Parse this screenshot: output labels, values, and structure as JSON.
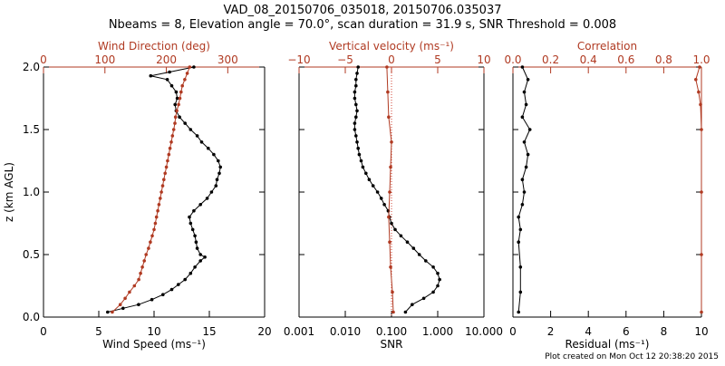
{
  "title_line1": "VAD_08_20150706_035018, 20150706.035037",
  "title_line2": "Nbeams = 8, Elevation angle = 70.0°, scan duration = 31.9 s, SNR Threshold = 0.008",
  "footer": "Plot created on Mon Oct 12 20:38:20 2015",
  "colors": {
    "primary": "#000000",
    "secondary": "#b03a22",
    "dotted_ref": "#d04030"
  },
  "chart_data": [
    {
      "type": "line",
      "ylabel": "z (km AGL)",
      "ylim": [
        0,
        2
      ],
      "yticks": [
        "0.0",
        "0.5",
        "1.0",
        "1.5",
        "2.0"
      ],
      "bottom_axis": {
        "label": "Wind Speed (ms⁻¹)",
        "range": [
          0,
          20
        ],
        "ticks": [
          "0",
          "5",
          "10",
          "15",
          "20"
        ],
        "color": "#000000"
      },
      "top_axis": {
        "label": "Wind Direction (deg)",
        "range": [
          0,
          360
        ],
        "ticks": [
          "0",
          "100",
          "200",
          "300"
        ],
        "color": "#b03a22"
      },
      "series": [
        {
          "axis": "bottom",
          "color": "#000000",
          "z": [
            0.04,
            0.07,
            0.1,
            0.14,
            0.18,
            0.22,
            0.26,
            0.3,
            0.35,
            0.4,
            0.45,
            0.48,
            0.5,
            0.55,
            0.6,
            0.65,
            0.7,
            0.75,
            0.8,
            0.85,
            0.9,
            0.95,
            1.0,
            1.05,
            1.1,
            1.15,
            1.2,
            1.25,
            1.3,
            1.35,
            1.4,
            1.45,
            1.5,
            1.55,
            1.6,
            1.65,
            1.7,
            1.75,
            1.8,
            1.85,
            1.9,
            1.93,
            1.96,
            2.0
          ],
          "values": [
            5.8,
            7.2,
            8.6,
            9.8,
            10.8,
            11.6,
            12.2,
            12.8,
            13.3,
            13.7,
            14.2,
            14.6,
            14.2,
            13.9,
            13.8,
            13.7,
            13.5,
            13.3,
            13.2,
            13.6,
            14.2,
            14.8,
            15.2,
            15.6,
            15.7,
            15.9,
            16.0,
            15.8,
            15.4,
            14.9,
            14.3,
            13.9,
            13.3,
            12.8,
            12.3,
            12.0,
            11.9,
            12.1,
            12.0,
            11.6,
            11.2,
            9.7,
            11.4,
            13.6
          ]
        },
        {
          "axis": "top",
          "color": "#b03a22",
          "z": [
            0.04,
            0.1,
            0.15,
            0.2,
            0.25,
            0.3,
            0.35,
            0.4,
            0.45,
            0.5,
            0.55,
            0.6,
            0.65,
            0.7,
            0.75,
            0.8,
            0.85,
            0.9,
            0.95,
            1.0,
            1.05,
            1.1,
            1.15,
            1.2,
            1.25,
            1.3,
            1.35,
            1.4,
            1.45,
            1.5,
            1.55,
            1.6,
            1.65,
            1.7,
            1.75,
            1.8,
            1.85,
            1.9,
            1.95,
            2.0
          ],
          "values": [
            112,
            125,
            133,
            140,
            148,
            155,
            158,
            161,
            164,
            167,
            171,
            174,
            177,
            180,
            182,
            184,
            186,
            188,
            190,
            192,
            194,
            196,
            198,
            200,
            202,
            204,
            206,
            208,
            210,
            212,
            214,
            215,
            217,
            220,
            222,
            224,
            226,
            230,
            234,
            238
          ]
        }
      ]
    },
    {
      "type": "line",
      "ylim": [
        0,
        2
      ],
      "bottom_axis": {
        "label": "SNR",
        "scale": "log",
        "range": [
          0.001,
          10
        ],
        "ticks": [
          "0.001",
          "0.010",
          "0.100",
          "1.000",
          "10.000"
        ],
        "color": "#000000"
      },
      "top_axis": {
        "label": "Vertical velocity (ms⁻¹)",
        "range": [
          -10,
          10
        ],
        "ticks": [
          "−10",
          "−5",
          "0",
          "5",
          "10"
        ],
        "color": "#b03a22"
      },
      "series": [
        {
          "axis": "bottom",
          "color": "#000000",
          "z": [
            0.04,
            0.1,
            0.15,
            0.2,
            0.25,
            0.3,
            0.35,
            0.4,
            0.45,
            0.5,
            0.55,
            0.6,
            0.65,
            0.7,
            0.75,
            0.8,
            0.85,
            0.9,
            0.95,
            1.0,
            1.05,
            1.1,
            1.15,
            1.2,
            1.25,
            1.3,
            1.35,
            1.4,
            1.45,
            1.5,
            1.55,
            1.6,
            1.65,
            1.7,
            1.75,
            1.8,
            1.85,
            1.9,
            1.95,
            2.0
          ],
          "values": [
            0.2,
            0.28,
            0.5,
            0.8,
            1.0,
            1.1,
            1.0,
            0.8,
            0.55,
            0.4,
            0.3,
            0.22,
            0.16,
            0.12,
            0.1,
            0.09,
            0.085,
            0.07,
            0.06,
            0.05,
            0.04,
            0.033,
            0.028,
            0.024,
            0.022,
            0.02,
            0.019,
            0.018,
            0.017,
            0.016,
            0.016,
            0.017,
            0.018,
            0.017,
            0.016,
            0.016,
            0.017,
            0.017,
            0.018,
            0.019
          ]
        },
        {
          "axis": "top",
          "color": "#b03a22",
          "z": [
            0.04,
            0.2,
            0.4,
            0.6,
            0.8,
            1.0,
            1.2,
            1.4,
            1.6,
            1.8,
            2.0
          ],
          "values": [
            0.2,
            0.1,
            -0.1,
            -0.2,
            -0.3,
            -0.2,
            -0.1,
            0.0,
            -0.3,
            -0.4,
            -0.5
          ]
        }
      ]
    },
    {
      "type": "line",
      "ylim": [
        0,
        2
      ],
      "bottom_axis": {
        "label": "Residual (ms⁻¹)",
        "range": [
          0,
          10
        ],
        "ticks": [
          "0",
          "2",
          "4",
          "6",
          "8",
          "10"
        ],
        "color": "#000000"
      },
      "top_axis": {
        "label": "Correlation",
        "range": [
          0,
          1
        ],
        "ticks": [
          "0.0",
          "0.2",
          "0.4",
          "0.6",
          "0.8",
          "1.0"
        ],
        "color": "#b03a22"
      },
      "series": [
        {
          "axis": "bottom",
          "color": "#000000",
          "z": [
            0.04,
            0.2,
            0.4,
            0.6,
            0.7,
            0.8,
            0.9,
            1.0,
            1.1,
            1.2,
            1.3,
            1.4,
            1.5,
            1.6,
            1.7,
            1.8,
            1.9,
            2.0
          ],
          "values": [
            0.3,
            0.4,
            0.4,
            0.3,
            0.4,
            0.3,
            0.5,
            0.6,
            0.5,
            0.7,
            0.8,
            0.6,
            0.9,
            0.5,
            0.7,
            0.6,
            0.8,
            0.5
          ]
        },
        {
          "axis": "top",
          "color": "#b03a22",
          "z": [
            0.04,
            0.5,
            1.0,
            1.5,
            1.7,
            1.8,
            1.9,
            2.0
          ],
          "values": [
            1.0,
            1.0,
            1.0,
            1.0,
            0.995,
            0.985,
            0.97,
            0.99
          ]
        }
      ]
    }
  ]
}
